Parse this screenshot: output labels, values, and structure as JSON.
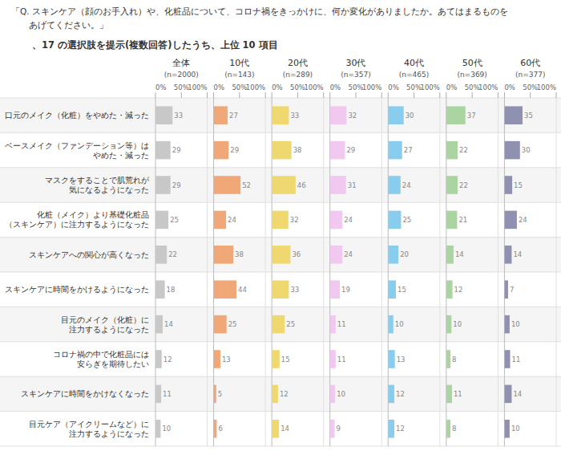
{
  "chart_data": {
    "type": "bar",
    "orientation": "horizontal",
    "title": [
      "「Q. スキンケア（顔のお手入れ）や、化粧品について、コロナ禍をきっかけに、何か変化がありましたか。あてはまるものを",
      "　　あげてください。」"
    ],
    "subtitle": "、17 の選択肢を提示(複数回答)したうち、上位 10 項目",
    "categories": [
      "口元のメイク（化粧）をやめた・減った",
      "ベースメイク（ファンデーション等）は\nやめた・減った",
      "マスクをすることで肌荒れが\n気になるようになった",
      "化粧（メイク）より基礎化粧品\n（スキンケア）に注力するようになった",
      "スキンケアへの関心が高くなった",
      "スキンケアに時間をかけるようになった",
      "目元のメイク（化粧）に\n注力するようになった",
      "コロナ禍の中で化粧品には\n安らぎを期待したい",
      "スキンケアに時間をかけなくなった",
      "目元ケア（アイクリームなど）に\n注力するようになった"
    ],
    "series": [
      {
        "name": "全体",
        "color": "#c8c8c8",
        "values": [
          33,
          29,
          29,
          25,
          22,
          18,
          14,
          12,
          11,
          10
        ]
      },
      {
        "name": "10代",
        "color": "#f0a878",
        "values": [
          27,
          29,
          52,
          24,
          38,
          44,
          25,
          13,
          5,
          6
        ]
      },
      {
        "name": "20代",
        "color": "#f0d870",
        "values": [
          33,
          38,
          46,
          32,
          36,
          33,
          25,
          15,
          12,
          14
        ]
      },
      {
        "name": "30代",
        "color": "#f0c8f0",
        "values": [
          32,
          29,
          31,
          24,
          24,
          19,
          11,
          11,
          10,
          9
        ]
      },
      {
        "name": "40代",
        "color": "#88ccee",
        "values": [
          30,
          27,
          24,
          25,
          20,
          15,
          10,
          13,
          12,
          12
        ]
      },
      {
        "name": "50代",
        "color": "#aad4a0",
        "values": [
          37,
          22,
          22,
          21,
          14,
          12,
          10,
          8,
          11,
          8
        ]
      },
      {
        "name": "60代",
        "color": "#9090b0",
        "values": [
          35,
          30,
          15,
          24,
          14,
          7,
          10,
          11,
          14,
          10
        ]
      }
    ],
    "annotations": [
      "(n=2000)",
      "(n=143)",
      "(n=289)",
      "(n=357)",
      "(n=465)",
      "(n=369)",
      "(n=377)"
    ],
    "xlim": [
      0,
      100
    ],
    "xticks": [
      {
        "value": 0,
        "label": "0%"
      },
      {
        "value": 50,
        "label": "50%"
      },
      {
        "value": 100,
        "label": "100%"
      }
    ],
    "grid": false,
    "data_labels": true
  }
}
